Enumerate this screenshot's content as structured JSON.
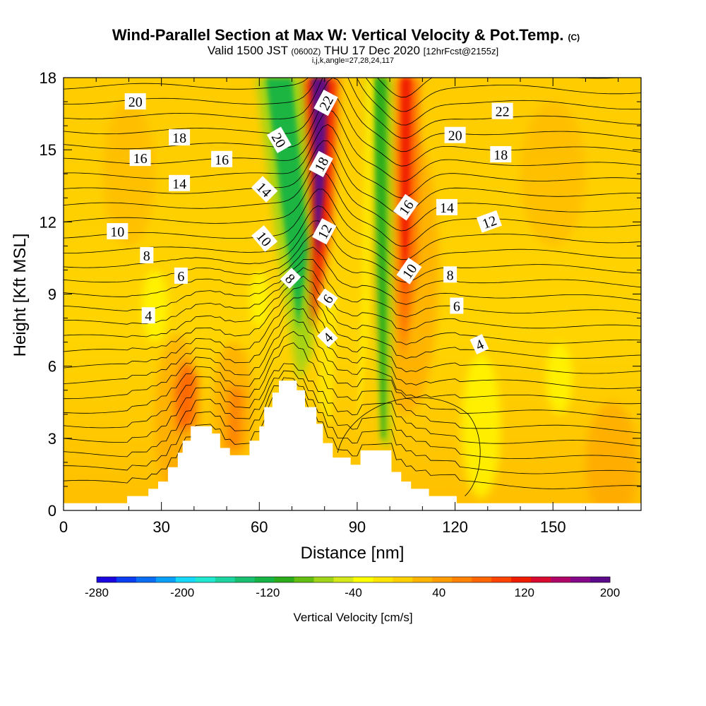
{
  "chart_data": {
    "type": "contour",
    "title": "Wind-Parallel Section at Max W: Vertical Velocity & Pot.Temp.",
    "title_mark": "(C)",
    "subtitle": {
      "valid": "Valid 1500 JST",
      "utc": "(0600Z)",
      "date": "THU 17 Dec 2020",
      "forecast": "[12hrFcst@2155z]"
    },
    "section_info": "i,j,k,angle=27,28,24,117",
    "xlabel": "Distance [nm]",
    "ylabel": "Height [Kft MSL]",
    "xlim": [
      0,
      177
    ],
    "ylim": [
      0,
      18
    ],
    "x_ticks": [
      0,
      30,
      60,
      90,
      120,
      150
    ],
    "y_ticks": [
      0,
      3,
      6,
      9,
      12,
      15,
      18
    ],
    "x_tick_labels": [
      "0",
      "30",
      "60",
      "90",
      "120",
      "150"
    ],
    "y_tick_labels": [
      "0",
      "3",
      "6",
      "9",
      "12",
      "15",
      "18"
    ],
    "colorbar": {
      "label": "Vertical Velocity [cm/s]",
      "range": [
        -280,
        200
      ],
      "tick_labels": [
        "-280",
        "-200",
        "-120",
        "-40",
        "40",
        "120",
        "200"
      ],
      "colors": [
        "#1b06e0",
        "#0a3ef0",
        "#0a6ef5",
        "#0aa0f8",
        "#16d8f8",
        "#20e8d0",
        "#1cd4a0",
        "#18c070",
        "#16b444",
        "#2cac1a",
        "#64be12",
        "#a0d416",
        "#d4e81a",
        "#ffff00",
        "#ffe600",
        "#ffd000",
        "#ffb400",
        "#ff9c00",
        "#ff8200",
        "#ff6600",
        "#ff4400",
        "#f01c00",
        "#d80a30",
        "#b00468",
        "#840888",
        "#5c0a8a"
      ]
    },
    "terrain_profile": [
      [
        0,
        0.3
      ],
      [
        19.5,
        0.3
      ],
      [
        19.5,
        0.6
      ],
      [
        26,
        0.6
      ],
      [
        26,
        0.9
      ],
      [
        29,
        0.9
      ],
      [
        29,
        1.2
      ],
      [
        32,
        1.2
      ],
      [
        32,
        1.8
      ],
      [
        35,
        1.8
      ],
      [
        35,
        2.4
      ],
      [
        36.5,
        2.4
      ],
      [
        36.5,
        2.9
      ],
      [
        39,
        2.9
      ],
      [
        39,
        3.5
      ],
      [
        45.5,
        3.5
      ],
      [
        45.5,
        3.2
      ],
      [
        48,
        3.2
      ],
      [
        48,
        2.6
      ],
      [
        51,
        2.6
      ],
      [
        51,
        2.3
      ],
      [
        57,
        2.3
      ],
      [
        57,
        2.9
      ],
      [
        60,
        2.9
      ],
      [
        60,
        3.5
      ],
      [
        61.5,
        3.5
      ],
      [
        61.5,
        4.3
      ],
      [
        64,
        4.3
      ],
      [
        64,
        4.9
      ],
      [
        66,
        4.9
      ],
      [
        66,
        5.4
      ],
      [
        71.5,
        5.4
      ],
      [
        71.5,
        5.0
      ],
      [
        74,
        5.0
      ],
      [
        74,
        4.3
      ],
      [
        77.5,
        4.3
      ],
      [
        77.5,
        3.6
      ],
      [
        79.5,
        3.6
      ],
      [
        79.5,
        2.8
      ],
      [
        82.5,
        2.8
      ],
      [
        82.5,
        2.2
      ],
      [
        88,
        2.2
      ],
      [
        88,
        1.9
      ],
      [
        91,
        1.9
      ],
      [
        91,
        2.5
      ],
      [
        100.5,
        2.5
      ],
      [
        100.5,
        1.6
      ],
      [
        103.5,
        1.6
      ],
      [
        103.5,
        1.2
      ],
      [
        106.5,
        1.2
      ],
      [
        106.5,
        0.9
      ],
      [
        112,
        0.9
      ],
      [
        112,
        0.6
      ],
      [
        120.5,
        0.6
      ],
      [
        120.5,
        0.3
      ],
      [
        177,
        0.3
      ]
    ],
    "theta_contours": [
      {
        "label": "4",
        "surface": 1.0
      },
      {
        "label": "6",
        "surface": 3.0
      },
      {
        "label": "8",
        "surface": 4.3
      },
      {
        "label": "10",
        "surface": 5.8
      },
      {
        "label": "12",
        "surface": 7.2
      },
      {
        "label": "14",
        "surface": 8.7
      },
      {
        "label": "16",
        "surface": 10.0
      },
      {
        "label": "18",
        "surface": 11.4
      },
      {
        "label": "20",
        "surface": 12.8
      },
      {
        "label": "22",
        "surface": 14.2
      }
    ],
    "contour_labels": [
      {
        "text": "20",
        "x": 22,
        "y": 17.0,
        "angle": 0
      },
      {
        "text": "18",
        "x": 35.5,
        "y": 15.5,
        "angle": 0
      },
      {
        "text": "16",
        "x": 23.5,
        "y": 14.65,
        "angle": 0
      },
      {
        "text": "16",
        "x": 48.5,
        "y": 14.6,
        "angle": 0
      },
      {
        "text": "14",
        "x": 35.5,
        "y": 13.6,
        "angle": 0
      },
      {
        "text": "10",
        "x": 16.5,
        "y": 11.6,
        "angle": 0
      },
      {
        "text": "8",
        "x": 25.5,
        "y": 10.6,
        "angle": 0
      },
      {
        "text": "6",
        "x": 36,
        "y": 9.75,
        "angle": 0
      },
      {
        "text": "4",
        "x": 26,
        "y": 8.1,
        "angle": 0
      },
      {
        "text": "20",
        "x": 66,
        "y": 15.4,
        "angle": 60
      },
      {
        "text": "14",
        "x": 61.5,
        "y": 13.35,
        "angle": 45
      },
      {
        "text": "10",
        "x": 61.5,
        "y": 11.3,
        "angle": 50
      },
      {
        "text": "8",
        "x": 69.5,
        "y": 9.65,
        "angle": 45
      },
      {
        "text": "22",
        "x": 80.5,
        "y": 16.95,
        "angle": -62
      },
      {
        "text": "18",
        "x": 79,
        "y": 14.4,
        "angle": -62
      },
      {
        "text": "12",
        "x": 80,
        "y": 11.6,
        "angle": -62
      },
      {
        "text": "6",
        "x": 81,
        "y": 8.8,
        "angle": -55
      },
      {
        "text": "4",
        "x": 81,
        "y": 7.2,
        "angle": -45
      },
      {
        "text": "22",
        "x": 134.5,
        "y": 16.6,
        "angle": 0
      },
      {
        "text": "20",
        "x": 120,
        "y": 15.6,
        "angle": 0
      },
      {
        "text": "18",
        "x": 134,
        "y": 14.8,
        "angle": 0
      },
      {
        "text": "16",
        "x": 105,
        "y": 12.6,
        "angle": -55
      },
      {
        "text": "14",
        "x": 117.5,
        "y": 12.6,
        "angle": 0
      },
      {
        "text": "12",
        "x": 130.5,
        "y": 12.0,
        "angle": -20
      },
      {
        "text": "10",
        "x": 106,
        "y": 9.95,
        "angle": -55
      },
      {
        "text": "8",
        "x": 118.5,
        "y": 9.8,
        "angle": 0
      },
      {
        "text": "6",
        "x": 120.5,
        "y": 8.5,
        "angle": 0
      },
      {
        "text": "4",
        "x": 127.5,
        "y": 6.9,
        "angle": -25
      }
    ],
    "velocity_features": [
      {
        "kind": "downdraft",
        "x": [
          60,
          76
        ],
        "y": [
          6,
          18
        ],
        "min": -150
      },
      {
        "kind": "updraft",
        "x": [
          76,
          82
        ],
        "y": [
          9,
          18
        ],
        "max": 200
      },
      {
        "kind": "downdraft",
        "x": [
          95,
          101
        ],
        "y": [
          2.5,
          18
        ],
        "min": -130
      },
      {
        "kind": "updraft",
        "x": [
          103,
          108
        ],
        "y": [
          6,
          18
        ],
        "max": 110
      },
      {
        "kind": "updraft",
        "x": [
          34,
          42
        ],
        "y": [
          2.5,
          6
        ],
        "max": 80
      }
    ]
  }
}
